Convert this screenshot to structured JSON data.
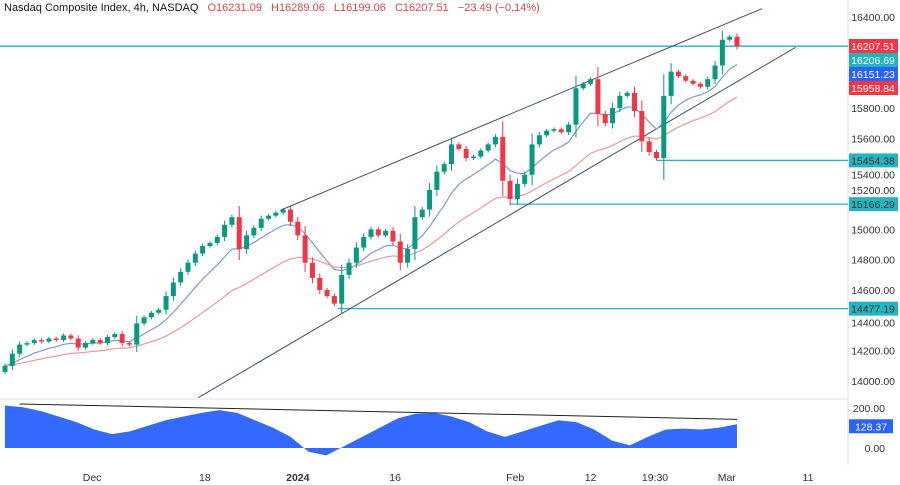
{
  "header": {
    "symbol": "Nasdaq Composite Index, 4h, NASDAQ",
    "open": "O16231.09",
    "high": "H16289.06",
    "low": "L16199.06",
    "close": "C16207.51",
    "change": "−23.49 (−0.14%)"
  },
  "colors": {
    "up": "#089981",
    "down": "#f23645",
    "fast_ma": "#7e9bd4",
    "slow_ma": "#e79a9a",
    "hline": "#26b5c0",
    "channel": "#3c4f78",
    "indicator": "#2962ff"
  },
  "chart_data": {
    "type": "candlestick",
    "ylim": [
      13950,
      16480
    ],
    "price_ticks": [
      "16400.00",
      "15800.00",
      "15600.00",
      "15400.00",
      "15200.00",
      "15000.00",
      "14800.00",
      "14600.00",
      "14400.00",
      "14200.00",
      "14000.00"
    ],
    "price_tick_values": [
      16400,
      15800,
      15600,
      15400,
      15200,
      15000,
      14800,
      14600,
      14400,
      14200,
      14000
    ],
    "x_labels": [
      {
        "text": "Dec",
        "i": 11.9
      },
      {
        "text": "18",
        "i": 27.3
      },
      {
        "text": "2024",
        "i": 40,
        "bold": true
      },
      {
        "text": "16",
        "i": 53.3
      },
      {
        "text": "Feb",
        "i": 69.7
      },
      {
        "text": "12",
        "i": 80
      },
      {
        "text": "19:30",
        "i": 88.8
      },
      {
        "text": "Mar",
        "i": 98.6
      },
      {
        "text": "11",
        "i": 109.7
      }
    ],
    "closes": [
      14100,
      14180,
      14240,
      14250,
      14270,
      14260,
      14280,
      14270,
      14300,
      14280,
      14220,
      14250,
      14270,
      14250,
      14290,
      14310,
      14250,
      14240,
      14380,
      14420,
      14450,
      14470,
      14560,
      14650,
      14720,
      14780,
      14840,
      14890,
      14910,
      14950,
      15030,
      15080,
      14870,
      14960,
      15010,
      15070,
      15090,
      15110,
      15130,
      15050,
      14960,
      14780,
      14680,
      14600,
      14560,
      14510,
      14700,
      14780,
      14880,
      14950,
      15000,
      14960,
      14990,
      14920,
      14780,
      14870,
      15080,
      15130,
      15260,
      15380,
      15430,
      15560,
      15530,
      15470,
      15480,
      15520,
      15560,
      15610,
      15320,
      15200,
      15300,
      15360,
      15560,
      15620,
      15650,
      15660,
      15640,
      15690,
      15930,
      15960,
      15990,
      15760,
      15700,
      15800,
      15880,
      15900,
      15780,
      15580,
      15510,
      15470,
      15880,
      16040,
      16010,
      15980,
      15960,
      15940,
      15990,
      16080,
      16250,
      16270,
      16207.51
    ],
    "horizontal_levels": [
      {
        "value": 16207.51,
        "label": "16207.51",
        "from_i": 0
      },
      {
        "value": 15454.38,
        "label": "15454.38",
        "from_i": 89
      },
      {
        "value": 15166.29,
        "label": "15166.29",
        "from_i": 69
      },
      {
        "value": 14477.19,
        "label": "14477.19",
        "from_i": 45.5
      }
    ],
    "price_labels": [
      {
        "text": "16207.51",
        "color": "#f23645"
      },
      {
        "text": "16206.69",
        "color": "#22b3c0"
      },
      {
        "text": "16151.23",
        "color": "#2962ff"
      },
      {
        "text": "15958.84",
        "color": "#f23645"
      }
    ],
    "channel": {
      "upper": [
        [
          37.6,
          15125
        ],
        [
          103.4,
          16455
        ]
      ],
      "lower": [
        [
          26.4,
          13890
        ],
        [
          108,
          16200
        ]
      ]
    },
    "indicator": {
      "ticks": [
        "200.00",
        "0.00"
      ],
      "tick_values": [
        200,
        0
      ],
      "last_label": "128.37",
      "ylim": [
        -60,
        260
      ],
      "values": [
        230,
        220,
        200,
        170,
        140,
        100,
        75,
        90,
        120,
        150,
        170,
        190,
        205,
        190,
        150,
        110,
        60,
        -20,
        -40,
        10,
        60,
        110,
        160,
        185,
        190,
        170,
        140,
        90,
        60,
        90,
        120,
        150,
        140,
        100,
        40,
        15,
        60,
        100,
        105,
        100,
        110,
        128.37
      ],
      "trend": [
        [
          2,
          238
        ],
        [
          100,
          155
        ]
      ]
    }
  }
}
